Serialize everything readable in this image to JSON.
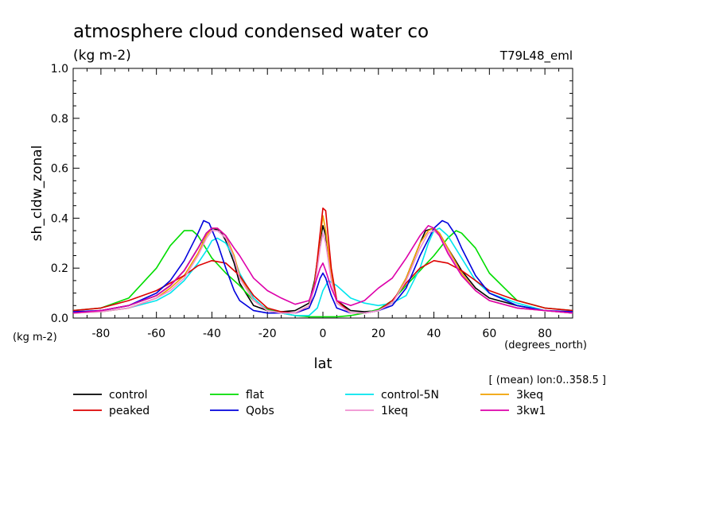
{
  "chart_data": {
    "type": "line",
    "title": "atmosphere cloud condensed water co",
    "subtitle": "(kg m-2)",
    "run_label": "T79L48_eml",
    "ylabel": "sh_cldw_zonal",
    "y_units": "(kg m-2)",
    "xlabel": "lat",
    "x_units": "(degrees_north)",
    "note": "[ (mean) lon:0..358.5 ]",
    "xlim": [
      -90,
      90
    ],
    "ylim": [
      0,
      1.0
    ],
    "x_ticks": [
      -80,
      -60,
      -40,
      -20,
      0,
      20,
      40,
      60,
      80
    ],
    "x_tick_labels": [
      "-80",
      "-60",
      "-40",
      "-20",
      "0",
      "20",
      "40",
      "60",
      "80"
    ],
    "y_ticks": [
      0,
      0.2,
      0.4,
      0.6,
      0.8,
      1.0
    ],
    "y_tick_labels": [
      "0.0",
      "0.2",
      "0.4",
      "0.6",
      "0.8",
      "1.0"
    ],
    "grid": false,
    "legend_position": "bottom",
    "series": [
      {
        "name": "control",
        "color": "#000000",
        "x": [
          -90,
          -80,
          -70,
          -60,
          -55,
          -50,
          -45,
          -42,
          -40,
          -37,
          -35,
          -32,
          -30,
          -25,
          -20,
          -15,
          -10,
          -5,
          -3,
          -1,
          0,
          1,
          3,
          5,
          10,
          15,
          20,
          25,
          30,
          35,
          37,
          40,
          42,
          45,
          50,
          55,
          60,
          70,
          80,
          90
        ],
        "y": [
          0.02,
          0.03,
          0.05,
          0.09,
          0.13,
          0.19,
          0.28,
          0.34,
          0.36,
          0.35,
          0.31,
          0.22,
          0.14,
          0.05,
          0.03,
          0.025,
          0.03,
          0.06,
          0.15,
          0.31,
          0.37,
          0.33,
          0.17,
          0.07,
          0.03,
          0.025,
          0.03,
          0.06,
          0.16,
          0.3,
          0.35,
          0.36,
          0.34,
          0.28,
          0.19,
          0.12,
          0.08,
          0.05,
          0.03,
          0.02
        ]
      },
      {
        "name": "flat",
        "color": "#00dd00",
        "x": [
          -90,
          -80,
          -70,
          -60,
          -55,
          -50,
          -47,
          -45,
          -40,
          -35,
          -30,
          -25,
          -20,
          -15,
          -10,
          -5,
          0,
          5,
          10,
          15,
          20,
          25,
          30,
          35,
          40,
          45,
          48,
          50,
          55,
          60,
          70,
          80,
          90
        ],
        "y": [
          0.03,
          0.04,
          0.08,
          0.2,
          0.29,
          0.35,
          0.35,
          0.33,
          0.24,
          0.18,
          0.13,
          0.07,
          0.035,
          0.02,
          0.01,
          0.005,
          0.005,
          0.005,
          0.01,
          0.02,
          0.035,
          0.07,
          0.13,
          0.19,
          0.25,
          0.32,
          0.35,
          0.34,
          0.28,
          0.18,
          0.07,
          0.04,
          0.03
        ]
      },
      {
        "name": "control-5N",
        "color": "#00e5ee",
        "x": [
          -90,
          -80,
          -70,
          -60,
          -55,
          -50,
          -45,
          -42,
          -40,
          -38,
          -35,
          -32,
          -30,
          -25,
          -20,
          -15,
          -10,
          -5,
          -2,
          0,
          2,
          5,
          8,
          10,
          15,
          20,
          25,
          30,
          35,
          38,
          40,
          42,
          45,
          50,
          55,
          60,
          70,
          80,
          90
        ],
        "y": [
          0.02,
          0.025,
          0.04,
          0.07,
          0.1,
          0.15,
          0.22,
          0.27,
          0.31,
          0.32,
          0.3,
          0.24,
          0.18,
          0.08,
          0.03,
          0.02,
          0.01,
          0.01,
          0.04,
          0.11,
          0.15,
          0.13,
          0.1,
          0.08,
          0.06,
          0.05,
          0.06,
          0.09,
          0.2,
          0.3,
          0.35,
          0.36,
          0.33,
          0.24,
          0.15,
          0.1,
          0.06,
          0.03,
          0.02
        ]
      },
      {
        "name": "3keq",
        "color": "#f0a000",
        "x": [
          -90,
          -80,
          -70,
          -60,
          -55,
          -50,
          -45,
          -42,
          -40,
          -38,
          -35,
          -32,
          -30,
          -25,
          -20,
          -15,
          -10,
          -5,
          -3,
          -1,
          0,
          1,
          3,
          5,
          10,
          15,
          20,
          25,
          30,
          35,
          38,
          40,
          42,
          45,
          50,
          55,
          60,
          70,
          80,
          90
        ],
        "y": [
          0.02,
          0.025,
          0.04,
          0.08,
          0.12,
          0.17,
          0.26,
          0.33,
          0.36,
          0.36,
          0.33,
          0.25,
          0.17,
          0.07,
          0.03,
          0.02,
          0.02,
          0.05,
          0.14,
          0.32,
          0.41,
          0.35,
          0.17,
          0.06,
          0.02,
          0.02,
          0.03,
          0.06,
          0.16,
          0.3,
          0.35,
          0.36,
          0.34,
          0.28,
          0.18,
          0.11,
          0.07,
          0.04,
          0.03,
          0.02
        ]
      },
      {
        "name": "peaked",
        "color": "#dd0000",
        "x": [
          -90,
          -80,
          -70,
          -60,
          -55,
          -50,
          -45,
          -40,
          -35,
          -30,
          -25,
          -20,
          -15,
          -10,
          -5,
          -3,
          -1,
          0,
          1,
          3,
          5,
          10,
          15,
          20,
          25,
          30,
          35,
          40,
          45,
          50,
          55,
          60,
          70,
          80,
          90
        ],
        "y": [
          0.03,
          0.04,
          0.07,
          0.11,
          0.14,
          0.17,
          0.21,
          0.23,
          0.22,
          0.17,
          0.09,
          0.04,
          0.025,
          0.02,
          0.04,
          0.13,
          0.34,
          0.44,
          0.43,
          0.2,
          0.07,
          0.02,
          0.02,
          0.03,
          0.07,
          0.14,
          0.2,
          0.23,
          0.22,
          0.19,
          0.15,
          0.11,
          0.07,
          0.04,
          0.03
        ]
      },
      {
        "name": "Qobs",
        "color": "#0000dd",
        "x": [
          -90,
          -80,
          -70,
          -60,
          -55,
          -50,
          -45,
          -43,
          -41,
          -38,
          -35,
          -32,
          -30,
          -25,
          -20,
          -15,
          -10,
          -5,
          -3,
          -1,
          0,
          1,
          3,
          5,
          10,
          15,
          20,
          25,
          30,
          35,
          40,
          43,
          45,
          48,
          50,
          55,
          60,
          70,
          80,
          90
        ],
        "y": [
          0.025,
          0.03,
          0.05,
          0.1,
          0.15,
          0.23,
          0.34,
          0.39,
          0.38,
          0.3,
          0.2,
          0.11,
          0.07,
          0.03,
          0.02,
          0.02,
          0.02,
          0.04,
          0.09,
          0.16,
          0.18,
          0.16,
          0.09,
          0.04,
          0.02,
          0.02,
          0.03,
          0.05,
          0.12,
          0.25,
          0.36,
          0.39,
          0.38,
          0.33,
          0.28,
          0.17,
          0.1,
          0.05,
          0.03,
          0.025
        ]
      },
      {
        "name": "1keq",
        "color": "#f090d0",
        "x": [
          -90,
          -80,
          -70,
          -60,
          -55,
          -50,
          -45,
          -42,
          -40,
          -38,
          -35,
          -32,
          -30,
          -25,
          -20,
          -15,
          -10,
          -5,
          -3,
          -1,
          0,
          1,
          3,
          5,
          10,
          15,
          20,
          25,
          30,
          35,
          38,
          40,
          42,
          45,
          50,
          55,
          60,
          70,
          80,
          90
        ],
        "y": [
          0.02,
          0.025,
          0.04,
          0.08,
          0.11,
          0.16,
          0.25,
          0.32,
          0.35,
          0.35,
          0.32,
          0.24,
          0.16,
          0.07,
          0.03,
          0.02,
          0.02,
          0.05,
          0.12,
          0.28,
          0.34,
          0.3,
          0.15,
          0.06,
          0.02,
          0.02,
          0.03,
          0.06,
          0.15,
          0.28,
          0.34,
          0.35,
          0.33,
          0.27,
          0.17,
          0.11,
          0.07,
          0.04,
          0.03,
          0.02
        ]
      },
      {
        "name": "3kw1",
        "color": "#dd00aa",
        "x": [
          -90,
          -80,
          -70,
          -60,
          -55,
          -50,
          -45,
          -42,
          -40,
          -38,
          -35,
          -32,
          -30,
          -25,
          -20,
          -15,
          -10,
          -5,
          -3,
          -1,
          0,
          1,
          3,
          5,
          10,
          15,
          20,
          25,
          30,
          35,
          38,
          40,
          42,
          45,
          50,
          55,
          60,
          70,
          80,
          90
        ],
        "y": [
          0.02,
          0.03,
          0.05,
          0.09,
          0.13,
          0.19,
          0.28,
          0.34,
          0.36,
          0.36,
          0.33,
          0.28,
          0.25,
          0.16,
          0.11,
          0.08,
          0.055,
          0.07,
          0.13,
          0.2,
          0.22,
          0.19,
          0.12,
          0.07,
          0.05,
          0.07,
          0.12,
          0.16,
          0.24,
          0.33,
          0.37,
          0.36,
          0.33,
          0.26,
          0.17,
          0.11,
          0.07,
          0.04,
          0.03,
          0.02
        ]
      }
    ]
  }
}
